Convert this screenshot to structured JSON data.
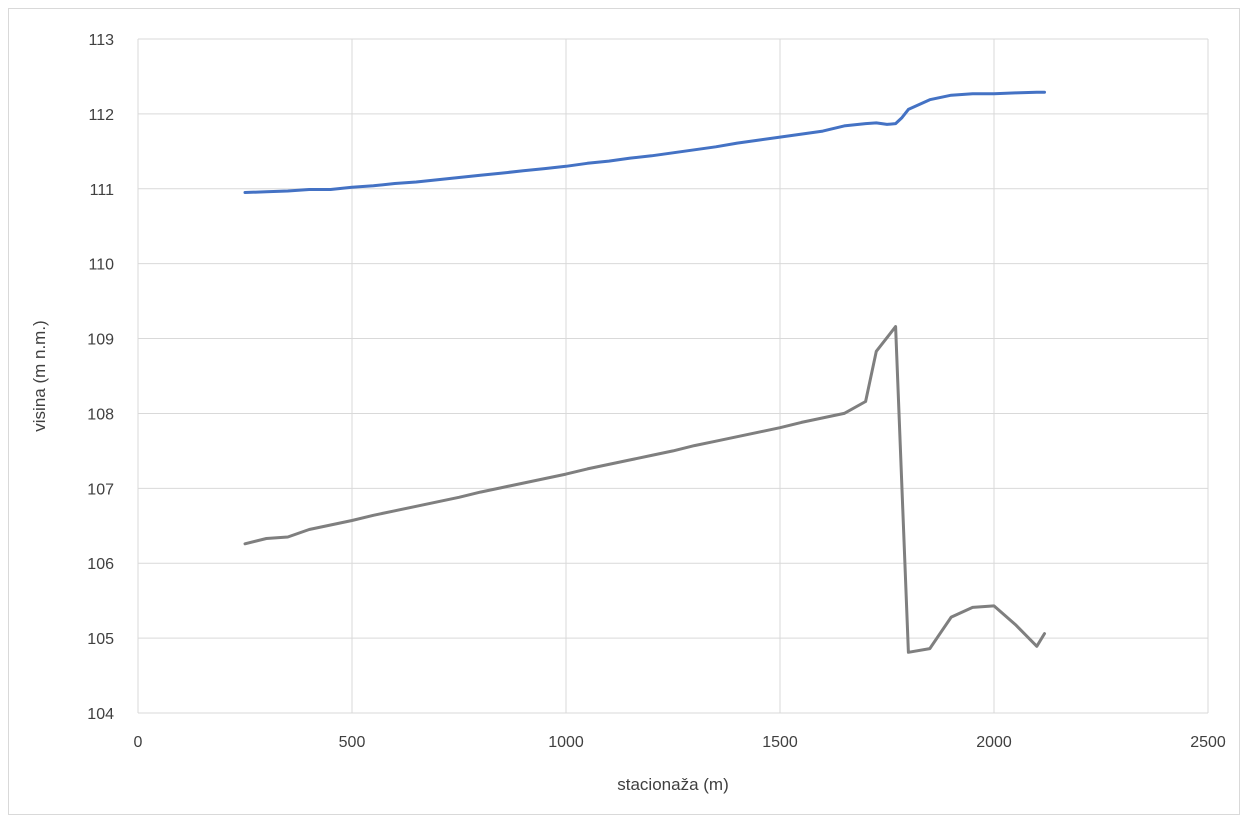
{
  "chart_data": {
    "type": "line",
    "title": "",
    "xlabel": "stacionaža (m)",
    "ylabel": "visina (m n.m.)",
    "xlim": [
      0,
      2500
    ],
    "ylim": [
      104,
      113
    ],
    "x_ticks": [
      0,
      500,
      1000,
      1500,
      2000,
      2500
    ],
    "y_ticks": [
      104,
      105,
      106,
      107,
      108,
      109,
      110,
      111,
      112,
      113
    ],
    "x_tick_labels": [
      "0",
      "500",
      "1000",
      "1500",
      "2000",
      "2500"
    ],
    "y_tick_labels": [
      "104",
      "105",
      "106",
      "107",
      "108",
      "109",
      "110",
      "111",
      "112",
      "113"
    ],
    "grid": true,
    "legend": "none",
    "series": [
      {
        "color": "#4472c4",
        "x": [
          250,
          300,
          350,
          400,
          450,
          500,
          550,
          600,
          650,
          700,
          750,
          800,
          850,
          900,
          950,
          1000,
          1050,
          1100,
          1150,
          1200,
          1250,
          1300,
          1350,
          1400,
          1450,
          1500,
          1550,
          1600,
          1650,
          1700,
          1725,
          1750,
          1770,
          1785,
          1800,
          1850,
          1900,
          1950,
          2000,
          2050,
          2100,
          2118
        ],
        "y": [
          110.95,
          110.96,
          110.97,
          110.99,
          110.99,
          111.02,
          111.04,
          111.07,
          111.09,
          111.12,
          111.15,
          111.18,
          111.21,
          111.24,
          111.27,
          111.3,
          111.34,
          111.37,
          111.41,
          111.44,
          111.48,
          111.52,
          111.56,
          111.61,
          111.65,
          111.69,
          111.73,
          111.77,
          111.84,
          111.87,
          111.88,
          111.86,
          111.87,
          111.95,
          112.06,
          112.19,
          112.25,
          112.27,
          112.27,
          112.28,
          112.29,
          112.29
        ]
      },
      {
        "color": "#7f7f7f",
        "x": [
          250,
          300,
          350,
          400,
          450,
          500,
          550,
          600,
          650,
          700,
          750,
          800,
          850,
          900,
          950,
          1000,
          1050,
          1100,
          1150,
          1200,
          1250,
          1300,
          1350,
          1400,
          1450,
          1500,
          1550,
          1600,
          1650,
          1700,
          1725,
          1770,
          1800,
          1850,
          1900,
          1950,
          2000,
          2050,
          2100,
          2118
        ],
        "y": [
          106.26,
          106.33,
          106.35,
          106.45,
          106.51,
          106.57,
          106.64,
          106.7,
          106.76,
          106.82,
          106.88,
          106.95,
          107.01,
          107.07,
          107.13,
          107.19,
          107.26,
          107.32,
          107.38,
          107.44,
          107.5,
          107.57,
          107.63,
          107.69,
          107.75,
          107.81,
          107.88,
          107.94,
          108.0,
          108.16,
          108.83,
          109.16,
          104.81,
          104.86,
          105.28,
          105.41,
          105.43,
          105.18,
          104.89,
          105.06
        ]
      }
    ]
  }
}
